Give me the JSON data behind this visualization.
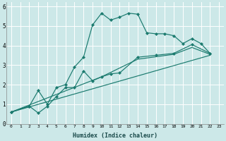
{
  "title": "",
  "xlabel": "Humidex (Indice chaleur)",
  "ylabel": "",
  "background_color": "#b8dede",
  "plot_bg_color": "#cce8e8",
  "grid_color": "#ffffff",
  "line_color": "#1a7a6e",
  "xlim": [
    -0.5,
    23.5
  ],
  "ylim": [
    0,
    6.2
  ],
  "xtick_vals": [
    0,
    1,
    2,
    3,
    4,
    5,
    6,
    7,
    8,
    9,
    10,
    11,
    12,
    13,
    14,
    15,
    16,
    17,
    18,
    19,
    20,
    21,
    22,
    23
  ],
  "ytick_vals": [
    0,
    1,
    2,
    3,
    4,
    5,
    6
  ],
  "lines": [
    {
      "x": [
        0,
        2,
        3,
        4,
        5,
        6,
        7,
        8,
        9,
        10,
        11,
        12,
        13,
        14,
        15,
        16,
        17,
        18,
        19,
        20,
        21,
        22
      ],
      "y": [
        0.6,
        0.9,
        1.7,
        1.0,
        1.85,
        2.0,
        2.9,
        3.4,
        5.05,
        5.65,
        5.3,
        5.45,
        5.65,
        5.6,
        4.65,
        4.6,
        4.6,
        4.5,
        4.1,
        4.35,
        4.1,
        3.6
      ],
      "marker": true
    },
    {
      "x": [
        0,
        2,
        3,
        4,
        5,
        6,
        7,
        8,
        9,
        10,
        11,
        12,
        14,
        16,
        18,
        20,
        22
      ],
      "y": [
        0.6,
        0.9,
        0.55,
        0.9,
        1.4,
        1.85,
        1.85,
        2.7,
        2.2,
        2.4,
        2.55,
        2.6,
        3.4,
        3.5,
        3.6,
        4.05,
        3.6
      ],
      "marker": true
    },
    {
      "x": [
        0,
        22
      ],
      "y": [
        0.6,
        3.5
      ],
      "marker": false
    },
    {
      "x": [
        0,
        10,
        14,
        18,
        20,
        22
      ],
      "y": [
        0.6,
        2.4,
        3.3,
        3.55,
        3.9,
        3.55
      ],
      "marker": false
    }
  ]
}
